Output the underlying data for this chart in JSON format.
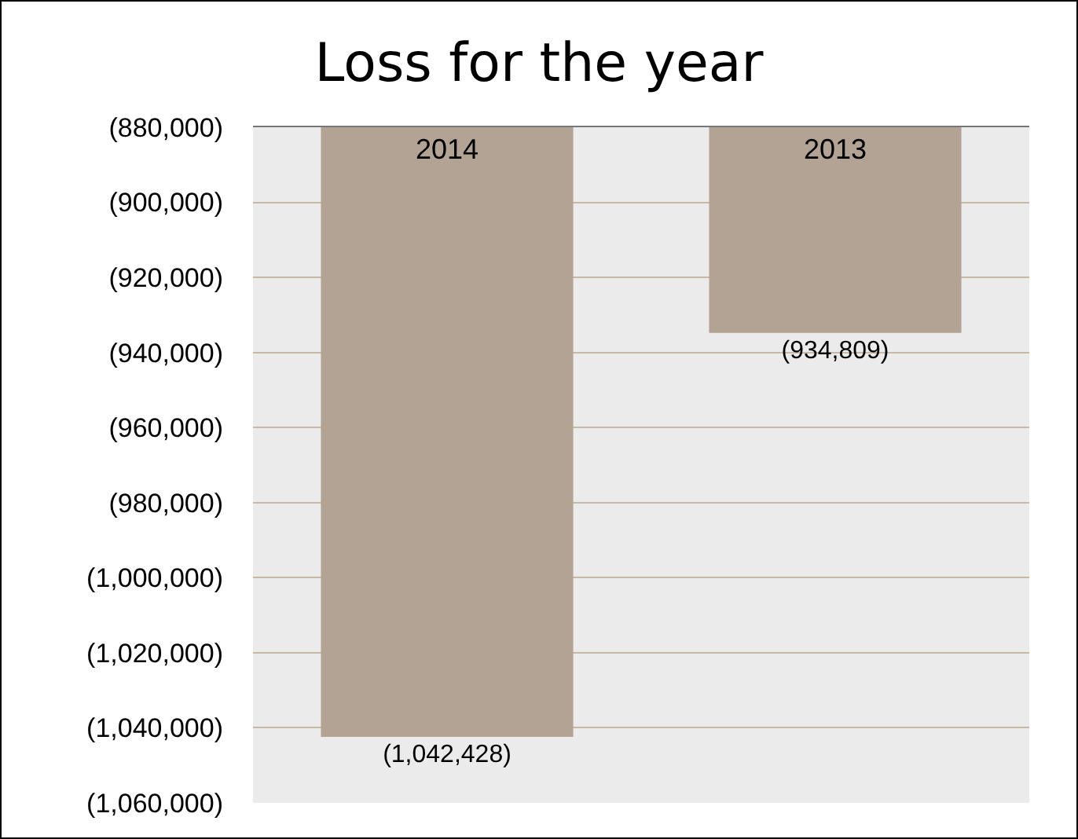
{
  "chart_data": {
    "type": "bar",
    "title": "Loss for the year",
    "categories": [
      "2014",
      "2013"
    ],
    "values": [
      -1042428,
      -934809
    ],
    "value_labels": [
      "(1,042,428)",
      "(934,809)"
    ],
    "color": "#b3a395",
    "ylim": [
      -1060000,
      -880000
    ],
    "yticks": [
      {
        "value": -880000,
        "label": "(880,000)"
      },
      {
        "value": -900000,
        "label": "(900,000)"
      },
      {
        "value": -920000,
        "label": "(920,000)"
      },
      {
        "value": -940000,
        "label": "(940,000)"
      },
      {
        "value": -960000,
        "label": "(960,000)"
      },
      {
        "value": -980000,
        "label": "(980,000)"
      },
      {
        "value": -1000000,
        "label": "(1,000,000)"
      },
      {
        "value": -1020000,
        "label": "(1,020,000)"
      },
      {
        "value": -1040000,
        "label": "(1,040,000)"
      },
      {
        "value": -1060000,
        "label": "(1,060,000)"
      }
    ],
    "grid": "y"
  }
}
